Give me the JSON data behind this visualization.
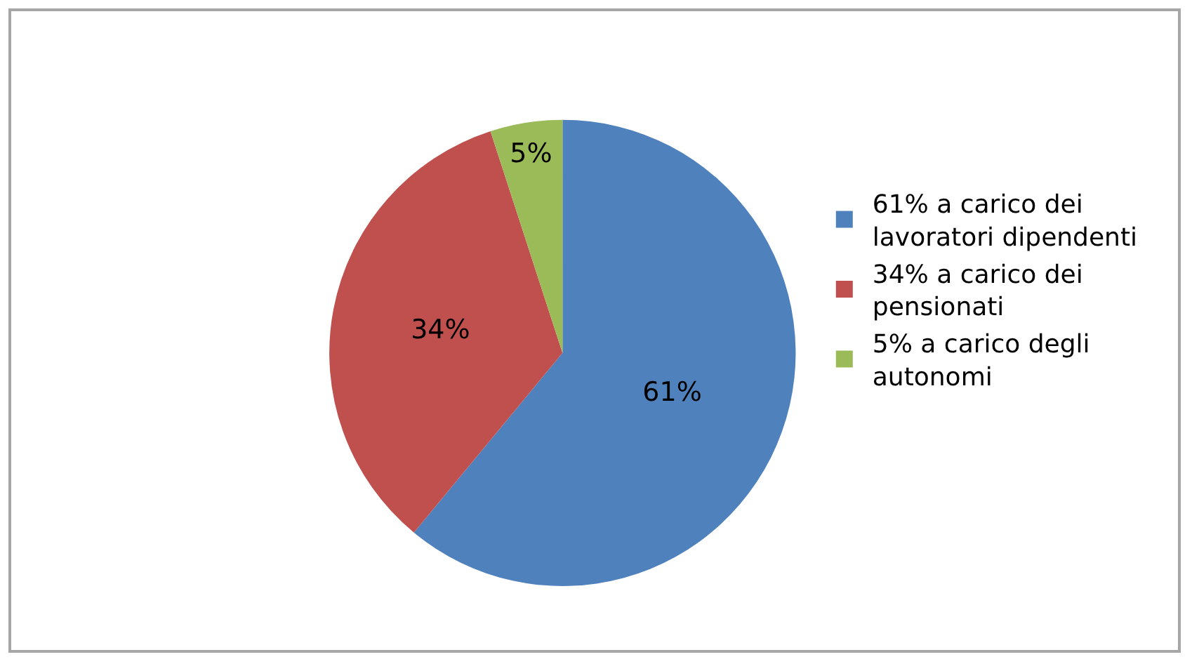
{
  "chart_data": {
    "type": "pie",
    "categories": [
      "61% a carico dei lavoratori dipendenti",
      "34% a carico dei pensionati",
      "5% a carico degli autonomi"
    ],
    "values": [
      61,
      34,
      5
    ],
    "colors": [
      "#4f81bd",
      "#c0504d",
      "#9bbb59"
    ],
    "value_labels": [
      "61%",
      "34%",
      "5%"
    ],
    "legend": "right"
  }
}
